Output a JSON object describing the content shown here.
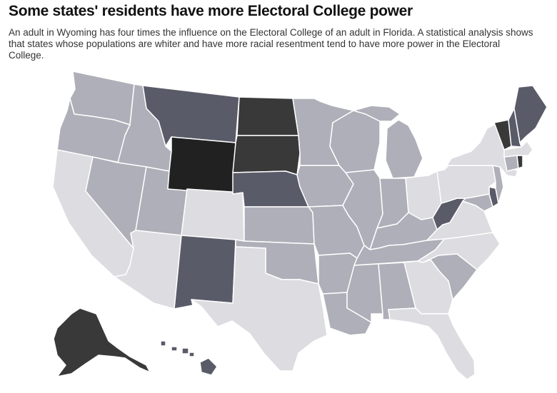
{
  "header": {
    "title": "Some states' residents have more Electoral College power",
    "subtitle": "An adult in Wyoming has four times the influence on the Electoral College of an adult in Florida. A statistical analysis shows that states whose populations are whiter and have more racial resentment tend to have more power in the Electoral College."
  },
  "palette": {
    "level1": "#dcdce1",
    "level2": "#aeafb8",
    "level3": "#595b68",
    "level4": "#393939",
    "level5": "#212121"
  },
  "states": [
    {
      "name": "Washington",
      "level": 2
    },
    {
      "name": "Oregon",
      "level": 2
    },
    {
      "name": "California",
      "level": 1
    },
    {
      "name": "Idaho",
      "level": 2
    },
    {
      "name": "Nevada",
      "level": 2
    },
    {
      "name": "Utah",
      "level": 2
    },
    {
      "name": "Arizona",
      "level": 1
    },
    {
      "name": "Montana",
      "level": 3
    },
    {
      "name": "Wyoming",
      "level": 5
    },
    {
      "name": "Colorado",
      "level": 1
    },
    {
      "name": "New Mexico",
      "level": 3
    },
    {
      "name": "North Dakota",
      "level": 4
    },
    {
      "name": "South Dakota",
      "level": 4
    },
    {
      "name": "Nebraska",
      "level": 3
    },
    {
      "name": "Kansas",
      "level": 2
    },
    {
      "name": "Oklahoma",
      "level": 2
    },
    {
      "name": "Texas",
      "level": 1
    },
    {
      "name": "Minnesota",
      "level": 2
    },
    {
      "name": "Iowa",
      "level": 2
    },
    {
      "name": "Missouri",
      "level": 2
    },
    {
      "name": "Arkansas",
      "level": 2
    },
    {
      "name": "Louisiana",
      "level": 2
    },
    {
      "name": "Wisconsin",
      "level": 2
    },
    {
      "name": "Illinois",
      "level": 2
    },
    {
      "name": "Michigan",
      "level": 2
    },
    {
      "name": "Indiana",
      "level": 2
    },
    {
      "name": "Ohio",
      "level": 1
    },
    {
      "name": "Kentucky",
      "level": 2
    },
    {
      "name": "Tennessee",
      "level": 2
    },
    {
      "name": "Mississippi",
      "level": 2
    },
    {
      "name": "Alabama",
      "level": 2
    },
    {
      "name": "Georgia",
      "level": 1
    },
    {
      "name": "Florida",
      "level": 1
    },
    {
      "name": "South Carolina",
      "level": 2
    },
    {
      "name": "North Carolina",
      "level": 1
    },
    {
      "name": "Virginia",
      "level": 1
    },
    {
      "name": "West Virginia",
      "level": 3
    },
    {
      "name": "Maryland",
      "level": 2
    },
    {
      "name": "Delaware",
      "level": 3
    },
    {
      "name": "Pennsylvania",
      "level": 1
    },
    {
      "name": "New Jersey",
      "level": 2
    },
    {
      "name": "New York",
      "level": 1
    },
    {
      "name": "Connecticut",
      "level": 2
    },
    {
      "name": "Rhode Island",
      "level": 4
    },
    {
      "name": "Massachusetts",
      "level": 1
    },
    {
      "name": "Vermont",
      "level": 4
    },
    {
      "name": "New Hampshire",
      "level": 3
    },
    {
      "name": "Maine",
      "level": 3
    },
    {
      "name": "Alaska",
      "level": 4
    },
    {
      "name": "Hawaii",
      "level": 3
    }
  ]
}
